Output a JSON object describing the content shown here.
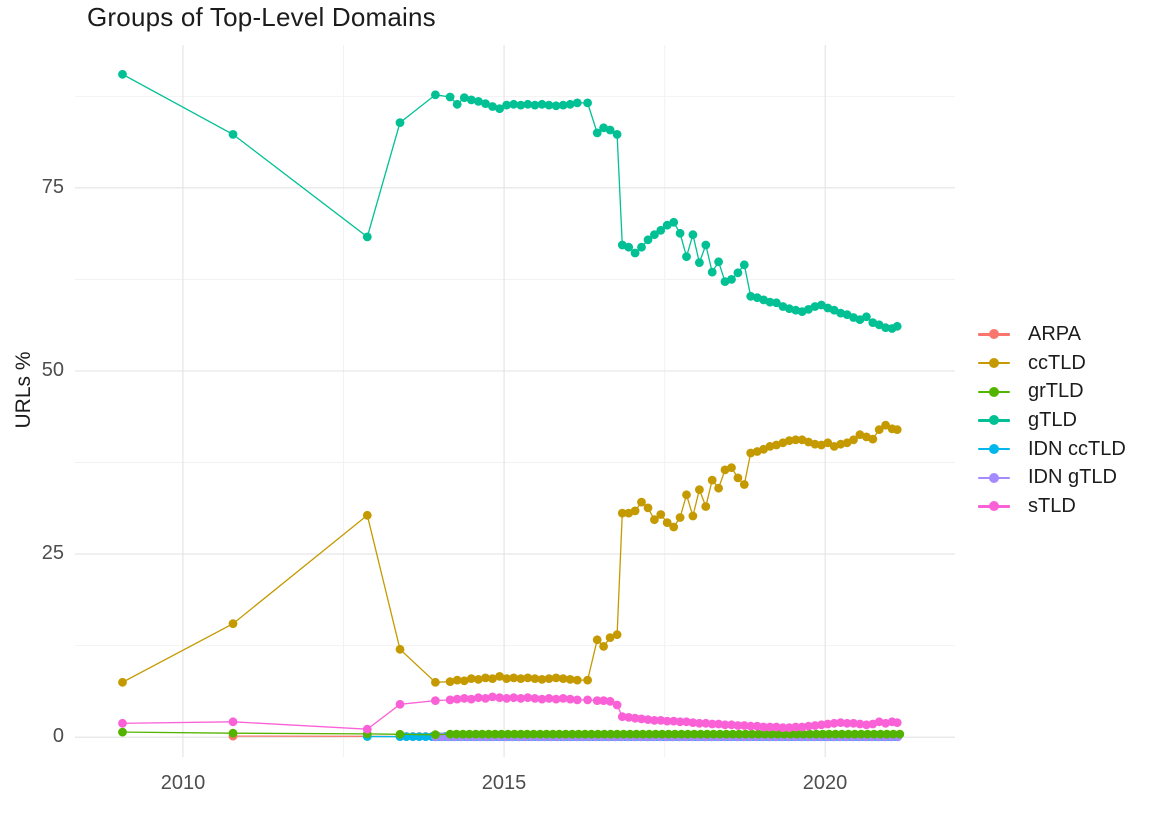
{
  "title": "Groups of Top-Level Domains",
  "axes": {
    "y_label": "URLs %",
    "x_tick_labels": [
      "2010",
      "2015",
      "2020"
    ],
    "y_tick_labels": [
      "0",
      "25",
      "50",
      "75"
    ]
  },
  "legend": {
    "items": [
      {
        "label": "ARPA",
        "color": "#F8766D"
      },
      {
        "label": "ccTLD",
        "color": "#C49A00"
      },
      {
        "label": "grTLD",
        "color": "#53B400"
      },
      {
        "label": "gTLD",
        "color": "#00C094"
      },
      {
        "label": "IDN ccTLD",
        "color": "#00B6EB"
      },
      {
        "label": "IDN gTLD",
        "color": "#A58AFF"
      },
      {
        "label": "sTLD",
        "color": "#FB61D7"
      }
    ]
  },
  "style": {
    "grid_major_color": "#e3e3e3",
    "grid_minor_color": "#f1f1f1",
    "marker_radius": 4.4,
    "line_width": 1.3
  },
  "chart_data": {
    "type": "line",
    "title": "Groups of Top-Level Domains",
    "xlabel": "",
    "ylabel": "URLs %",
    "xlim": [
      2008.32,
      2022.02
    ],
    "ylim": [
      -2.7,
      94.5
    ],
    "x_ticks": [
      2010,
      2015,
      2020
    ],
    "y_ticks": [
      0,
      25,
      50,
      75
    ],
    "x_minor_ticks": [
      2012.5,
      2017.5
    ],
    "y_minor_ticks": [
      12.5,
      37.5,
      62.5,
      87.5
    ],
    "grid": true,
    "legend_position": "right",
    "x_common": [
      2009.06,
      2010.78,
      2012.87,
      2013.38,
      2013.93,
      2014.16,
      2014.27,
      2014.38,
      2014.49,
      2014.6,
      2014.71,
      2014.82,
      2014.93,
      2015.04,
      2015.15,
      2015.26,
      2015.37,
      2015.48,
      2015.59,
      2015.7,
      2015.81,
      2015.92,
      2016.03,
      2016.14,
      2016.3,
      2016.45,
      2016.55,
      2016.65,
      2016.76,
      2016.84,
      2016.94,
      2017.04,
      2017.14,
      2017.24,
      2017.34,
      2017.44,
      2017.54,
      2017.64,
      2017.74,
      2017.84,
      2017.94,
      2018.04,
      2018.14,
      2018.24,
      2018.34,
      2018.44,
      2018.54,
      2018.64,
      2018.74,
      2018.84,
      2018.94,
      2019.04,
      2019.14,
      2019.24,
      2019.34,
      2019.44,
      2019.54,
      2019.64,
      2019.74,
      2019.84,
      2019.94,
      2020.04,
      2020.14,
      2020.24,
      2020.34,
      2020.44,
      2020.54,
      2020.64,
      2020.74,
      2020.84,
      2020.94,
      2021.04,
      2021.12
    ],
    "series": [
      {
        "name": "ARPA",
        "color": "#F8766D",
        "x": [
          2010.78,
          2012.87
        ],
        "y": [
          0.15,
          0.12
        ],
        "fill": {
          "from": 2013.38,
          "to": 2021.12,
          "step": 0.1,
          "value": 0.1
        }
      },
      {
        "name": "IDN ccTLD",
        "color": "#00B6EB",
        "x": [
          2012.87
        ],
        "y": [
          0.1
        ],
        "fill": {
          "from": 2013.38,
          "to": 2021.12,
          "step": 0.1,
          "value": 0.08
        }
      },
      {
        "name": "IDN gTLD",
        "color": "#A58AFF",
        "fill": {
          "from": 2013.93,
          "to": 2021.12,
          "step": 0.1,
          "value": 0.05
        }
      },
      {
        "name": "ccTLD",
        "color": "#C49A00",
        "y": [
          7.5,
          15.5,
          30.3,
          12.0,
          7.5,
          7.6,
          7.8,
          7.7,
          8.0,
          7.9,
          8.1,
          8.0,
          8.3,
          8.0,
          8.1,
          8.0,
          8.1,
          8.0,
          7.9,
          8.0,
          8.1,
          8.0,
          7.9,
          7.8,
          7.8,
          13.3,
          12.4,
          13.6,
          14.0,
          30.6,
          30.6,
          30.9,
          32.1,
          31.3,
          29.7,
          30.4,
          29.3,
          28.7,
          30.0,
          33.1,
          30.2,
          33.8,
          31.5,
          35.1,
          34.0,
          36.5,
          36.8,
          35.4,
          34.5,
          38.8,
          39.0,
          39.3,
          39.7,
          39.9,
          40.2,
          40.5,
          40.6,
          40.6,
          40.3,
          40.0,
          39.9,
          40.2,
          39.7,
          40.0,
          40.2,
          40.6,
          41.3,
          41.0,
          40.7,
          42.0,
          42.6,
          42.1,
          42.0
        ]
      },
      {
        "name": "grTLD",
        "color": "#53B400",
        "x": [
          2009.06,
          2010.78,
          2012.87,
          2013.38,
          2013.93
        ],
        "y": [
          0.7,
          0.55,
          0.45,
          0.4,
          0.35
        ],
        "fill": {
          "from": 2014.16,
          "to": 2021.12,
          "step": 0.1,
          "value": 0.42
        }
      },
      {
        "name": "gTLD",
        "color": "#00C094",
        "y": [
          90.5,
          82.3,
          68.3,
          83.9,
          87.7,
          87.4,
          86.4,
          87.3,
          87.0,
          86.8,
          86.5,
          86.1,
          85.8,
          86.3,
          86.4,
          86.3,
          86.4,
          86.3,
          86.4,
          86.3,
          86.2,
          86.3,
          86.4,
          86.6,
          86.6,
          82.5,
          83.2,
          82.9,
          82.3,
          67.2,
          66.9,
          66.1,
          66.9,
          67.9,
          68.6,
          69.2,
          69.9,
          70.3,
          68.8,
          65.6,
          68.6,
          64.8,
          67.2,
          63.5,
          64.9,
          62.2,
          62.5,
          63.4,
          64.5,
          60.2,
          60.0,
          59.7,
          59.4,
          59.3,
          58.8,
          58.5,
          58.3,
          58.1,
          58.4,
          58.8,
          59.0,
          58.6,
          58.3,
          57.9,
          57.7,
          57.3,
          57.0,
          57.4,
          56.6,
          56.3,
          55.9,
          55.8,
          56.1
        ]
      },
      {
        "name": "sTLD",
        "color": "#FB61D7",
        "y": [
          1.9,
          2.1,
          1.1,
          4.5,
          5.0,
          5.1,
          5.2,
          5.3,
          5.2,
          5.4,
          5.3,
          5.5,
          5.4,
          5.3,
          5.4,
          5.3,
          5.4,
          5.3,
          5.2,
          5.3,
          5.2,
          5.3,
          5.2,
          5.1,
          5.1,
          5.0,
          5.0,
          4.9,
          4.4,
          2.8,
          2.7,
          2.6,
          2.5,
          2.4,
          2.3,
          2.3,
          2.2,
          2.2,
          2.1,
          2.1,
          2.0,
          1.9,
          1.9,
          1.8,
          1.8,
          1.7,
          1.7,
          1.6,
          1.6,
          1.5,
          1.5,
          1.4,
          1.4,
          1.4,
          1.3,
          1.3,
          1.4,
          1.4,
          1.5,
          1.6,
          1.7,
          1.8,
          1.9,
          2.0,
          1.9,
          1.9,
          1.8,
          1.7,
          1.8,
          2.1,
          1.9,
          2.1,
          2.0
        ]
      }
    ]
  }
}
